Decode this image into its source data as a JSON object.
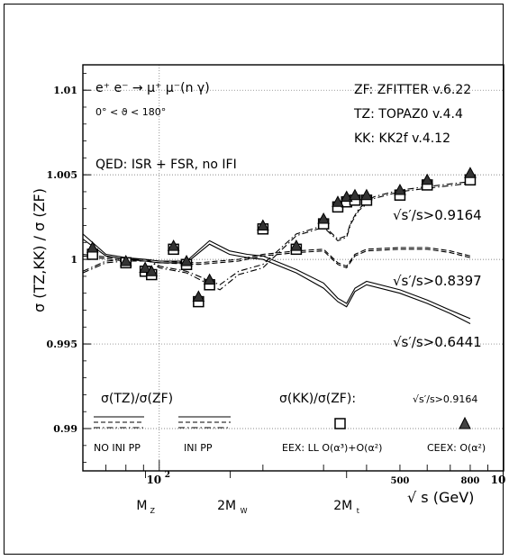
{
  "chart_data": {
    "type": "line",
    "ylabel": "σ (TZ,KK) / σ (ZF)",
    "xlabel": "√ s (GeV)",
    "x_scale": "log",
    "xlim": [
      60,
      1000
    ],
    "ylim": [
      0.9875,
      1.0115
    ],
    "grid": true,
    "y_ticks": [
      {
        "value": 0.99,
        "label": "0.99"
      },
      {
        "value": 0.995,
        "label": "0.995"
      },
      {
        "value": 1.0,
        "label": "1"
      },
      {
        "value": 1.005,
        "label": "1.005"
      },
      {
        "value": 1.01,
        "label": "1.01"
      }
    ],
    "x_tick_labels": [
      {
        "value": 100,
        "label": "10",
        "exp": "2"
      },
      {
        "value": 500,
        "label": "500"
      },
      {
        "value": 800,
        "label": "800"
      },
      {
        "value": 1000,
        "label": "10",
        "exp": "3"
      }
    ],
    "x_markers": [
      {
        "value": 91.19,
        "label": "M",
        "sub": "Z"
      },
      {
        "value": 160.8,
        "label": "2M",
        "sub": "W"
      },
      {
        "value": 350,
        "label": "2M",
        "sub": "t"
      }
    ],
    "annotations": {
      "process": "e⁺ e⁻ → μ⁺ μ⁻(n γ)",
      "angle": "0° < ϑ < 180°",
      "qed": "QED: ISR + FSR, no IFI",
      "zf": "ZF: ZFITTER v.6.22",
      "tz": "TZ: TOPAZ0 v.4.4",
      "kk": "KK: KK2f v.4.12",
      "cut1": "√s′/s>0.9164",
      "cut2": "√s′/s>0.8397",
      "cut3": "√s′/s>0.6441"
    },
    "legend": {
      "tz_title": "σ(TZ)/σ(ZF)",
      "kk_title": "σ(KK)/σ(ZF):",
      "kk_cut": "√s′/s>0.9164",
      "no_ini_pp": "NO INI PP",
      "ini_pp": "INI PP",
      "eex": "EEX: LL O(α³)+O(α²)",
      "ceex": "CEEX: O(α²)"
    },
    "series": [
      {
        "id": "no_ini_pp_09164",
        "cut": 0.9164,
        "style": "dash-dot",
        "x": [
          60,
          70,
          80,
          88,
          91,
          94,
          100,
          120,
          150,
          170,
          200,
          250,
          300,
          330,
          350,
          360,
          380,
          420,
          500,
          600,
          800
        ],
        "y": [
          0.9993,
          0.9999,
          1.0,
          1.0,
          1.0,
          0.9999,
          0.9996,
          0.9993,
          0.9985,
          0.9993,
          0.9997,
          1.0015,
          1.002,
          1.0012,
          1.0014,
          1.0022,
          1.003,
          1.0037,
          1.0041,
          1.0043,
          1.0046
        ]
      },
      {
        "id": "ini_pp_09164",
        "cut": 0.9164,
        "style": "dash-dot",
        "x": [
          60,
          70,
          80,
          88,
          91,
          94,
          100,
          120,
          150,
          170,
          200,
          250,
          300,
          330,
          350,
          360,
          380,
          420,
          500,
          600,
          800
        ],
        "y": [
          0.9992,
          0.9998,
          0.9999,
          1.0,
          1.0,
          0.9999,
          0.9995,
          0.9992,
          0.9982,
          0.9991,
          0.9995,
          1.0014,
          1.0019,
          1.0011,
          1.0013,
          1.0021,
          1.0029,
          1.0036,
          1.004,
          1.0042,
          1.0045
        ]
      },
      {
        "id": "no_ini_pp_08397",
        "cut": 0.8397,
        "style": "dash",
        "x": [
          60,
          80,
          91,
          100,
          130,
          170,
          200,
          250,
          300,
          330,
          350,
          370,
          400,
          500,
          600,
          700,
          800
        ],
        "y": [
          1.0003,
          1.0,
          1.0,
          0.9999,
          0.9998,
          1.0,
          1.0003,
          1.0005,
          1.0006,
          0.9998,
          0.9996,
          1.0003,
          1.0006,
          1.0007,
          1.0007,
          1.0005,
          1.0002
        ]
      },
      {
        "id": "ini_pp_08397",
        "cut": 0.8397,
        "style": "dash",
        "x": [
          60,
          80,
          91,
          100,
          130,
          170,
          200,
          250,
          300,
          330,
          350,
          370,
          400,
          500,
          600,
          700,
          800
        ],
        "y": [
          1.0002,
          0.9999,
          0.9999,
          0.9998,
          0.9997,
          0.9999,
          1.0002,
          1.0004,
          1.0005,
          0.9997,
          0.9995,
          1.0002,
          1.0005,
          1.0006,
          1.0006,
          1.0004,
          1.0001
        ]
      },
      {
        "id": "no_ini_pp_06441",
        "cut": 0.6441,
        "style": "solid",
        "x": [
          60,
          70,
          80,
          91,
          100,
          120,
          140,
          160,
          180,
          200,
          250,
          300,
          330,
          350,
          370,
          400,
          500,
          600,
          700,
          800
        ],
        "y": [
          1.0015,
          1.0003,
          1.0001,
          1.0,
          0.9999,
          0.9999,
          1.0011,
          1.0005,
          1.0003,
          1.0002,
          0.9994,
          0.9986,
          0.9977,
          0.9974,
          0.9983,
          0.9987,
          0.9982,
          0.9976,
          0.997,
          0.9965
        ]
      },
      {
        "id": "ini_pp_06441",
        "cut": 0.6441,
        "style": "solid",
        "x": [
          60,
          70,
          80,
          91,
          100,
          120,
          140,
          160,
          180,
          200,
          250,
          300,
          330,
          350,
          370,
          400,
          500,
          600,
          700,
          800
        ],
        "y": [
          1.0012,
          1.0002,
          1.0,
          0.9999,
          0.9998,
          0.9998,
          1.0009,
          1.0003,
          1.0001,
          1.0,
          0.9992,
          0.9983,
          0.9975,
          0.9972,
          0.9981,
          0.9985,
          0.998,
          0.9974,
          0.9968,
          0.9962
        ]
      },
      {
        "id": "eex",
        "marker": "square",
        "x": [
          64,
          80,
          91,
          95,
          110,
          120,
          130,
          140,
          200,
          250,
          300,
          330,
          350,
          370,
          400,
          500,
          600,
          800
        ],
        "y": [
          1.0003,
          0.9998,
          0.9993,
          0.9991,
          1.0006,
          0.9997,
          0.9975,
          0.9985,
          1.0018,
          1.0006,
          1.0021,
          1.0031,
          1.0034,
          1.0035,
          1.0035,
          1.0038,
          1.0044,
          1.0047
        ]
      },
      {
        "id": "ceex",
        "marker": "triangle",
        "x": [
          64,
          80,
          91,
          95,
          110,
          120,
          130,
          140,
          200,
          250,
          300,
          330,
          350,
          370,
          400,
          500,
          600,
          800
        ],
        "y": [
          1.0007,
          0.9999,
          0.9995,
          0.9993,
          1.0008,
          0.9999,
          0.9978,
          0.9988,
          1.002,
          1.0008,
          1.0024,
          1.0034,
          1.0037,
          1.0038,
          1.0038,
          1.0041,
          1.0047,
          1.0051
        ]
      }
    ]
  }
}
